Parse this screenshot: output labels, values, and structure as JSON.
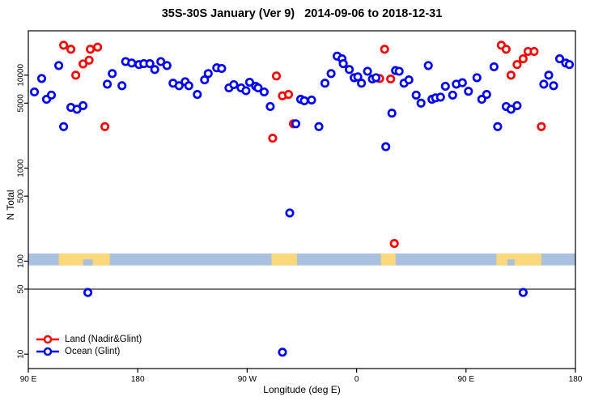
{
  "title": "35S-30S January (Ver 9)   2014-09-06 to 2018-12-31",
  "axes": {
    "xlabel": "Longitude (deg E)",
    "ylabel": "N Total"
  },
  "legend": [
    {
      "label": "Land (Nadir&Glint)",
      "color": "#ff0000",
      "symbol": "line-circle"
    },
    {
      "label": "Ocean (Glint)",
      "color": "#0000ff",
      "symbol": "line-circle"
    }
  ],
  "colors": {
    "land_series": "#ff0000",
    "ocean_series": "#0000ff",
    "map_ocean": "#a9c0de",
    "map_land": "#fcd87c",
    "axis": "#000000"
  },
  "chart_data": {
    "type": "scatter",
    "title": "35S-30S January (Ver 9)   2014-09-06 to 2018-12-31",
    "xlabel": "Longitude (deg E)",
    "ylabel": "N Total",
    "x_axis": {
      "domain": [
        90,
        540
      ],
      "note": "longitude wraps eastward from 90E through 180, 90W, 0, 90E to 180",
      "ticks": [
        {
          "v": 90,
          "label": "90 E"
        },
        {
          "v": 180,
          "label": "180"
        },
        {
          "v": 270,
          "label": "90 W"
        },
        {
          "v": 360,
          "label": "0"
        },
        {
          "v": 450,
          "label": "90 E"
        },
        {
          "v": 540,
          "label": "180"
        }
      ]
    },
    "y_axis": {
      "scale": "log",
      "domain": [
        7,
        30000
      ],
      "ticks": [
        {
          "v": 10,
          "label": "10"
        },
        {
          "v": 50,
          "label": "50"
        },
        {
          "v": 100,
          "label": "100"
        },
        {
          "v": 500,
          "label": "500"
        },
        {
          "v": 1000,
          "label": "1000"
        },
        {
          "v": 5000,
          "label": "5000"
        },
        {
          "v": 10000,
          "label": "10000"
        }
      ]
    },
    "hline": 50,
    "map_band": {
      "y_range": [
        90,
        121
      ],
      "ocean_color": "#a9c0de",
      "land_color": "#fcd87c",
      "land_patches": [
        [
          115,
          157
        ],
        [
          290,
          311
        ],
        [
          380,
          392
        ],
        [
          475,
          512
        ]
      ],
      "ocean_notches": [
        [
          135,
          143
        ],
        [
          484,
          490
        ]
      ]
    },
    "series": [
      {
        "name": "Land (Nadir&Glint)",
        "color": "#ff0000",
        "points": [
          [
            119,
            21000
          ],
          [
            125,
            19000
          ],
          [
            141,
            19000
          ],
          [
            147,
            20000
          ],
          [
            135,
            13200
          ],
          [
            140,
            14500
          ],
          [
            129,
            10000
          ],
          [
            153,
            2800
          ],
          [
            294,
            9800
          ],
          [
            299,
            6000
          ],
          [
            304,
            6200
          ],
          [
            308,
            3000
          ],
          [
            291,
            2100
          ],
          [
            383,
            19000
          ],
          [
            379,
            9200
          ],
          [
            388,
            9100
          ],
          [
            391,
            155
          ],
          [
            479,
            21000
          ],
          [
            483,
            19000
          ],
          [
            501,
            18000
          ],
          [
            506,
            18000
          ],
          [
            492,
            13000
          ],
          [
            497,
            15000
          ],
          [
            487,
            10000
          ],
          [
            512,
            2800
          ]
        ]
      },
      {
        "name": "Ocean (Glint)",
        "color": "#0000ff",
        "points": [
          [
            115,
            12700
          ],
          [
            101,
            9200
          ],
          [
            159,
            10400
          ],
          [
            155,
            8000
          ],
          [
            167,
            7700
          ],
          [
            95,
            6600
          ],
          [
            105,
            5500
          ],
          [
            109,
            6100
          ],
          [
            125,
            4500
          ],
          [
            130,
            4300
          ],
          [
            135,
            4700
          ],
          [
            119,
            2800
          ],
          [
            170,
            14000
          ],
          [
            175,
            13500
          ],
          [
            181,
            13000
          ],
          [
            185,
            13300
          ],
          [
            190,
            13300
          ],
          [
            194,
            11500
          ],
          [
            199,
            14000
          ],
          [
            204,
            12700
          ],
          [
            209,
            8200
          ],
          [
            214,
            7700
          ],
          [
            219,
            8500
          ],
          [
            222,
            7700
          ],
          [
            229,
            6200
          ],
          [
            235,
            8900
          ],
          [
            238,
            10400
          ],
          [
            245,
            12000
          ],
          [
            249,
            11800
          ],
          [
            255,
            7300
          ],
          [
            259,
            7900
          ],
          [
            265,
            7300
          ],
          [
            269,
            6800
          ],
          [
            272,
            8400
          ],
          [
            277,
            7600
          ],
          [
            279,
            7300
          ],
          [
            284,
            6600
          ],
          [
            289,
            4600
          ],
          [
            310,
            3000
          ],
          [
            314,
            5500
          ],
          [
            317,
            5300
          ],
          [
            323,
            5400
          ],
          [
            329,
            2800
          ],
          [
            334,
            8200
          ],
          [
            339,
            10400
          ],
          [
            344,
            16000
          ],
          [
            348,
            15000
          ],
          [
            349,
            13300
          ],
          [
            354,
            11500
          ],
          [
            358,
            9400
          ],
          [
            361,
            9600
          ],
          [
            364,
            8200
          ],
          [
            369,
            11000
          ],
          [
            373,
            9100
          ],
          [
            376,
            9400
          ],
          [
            392,
            11200
          ],
          [
            395,
            11000
          ],
          [
            399,
            8200
          ],
          [
            403,
            8900
          ],
          [
            389,
            3900
          ],
          [
            384,
            1700
          ],
          [
            419,
            12700
          ],
          [
            409,
            6100
          ],
          [
            413,
            5000
          ],
          [
            422,
            5500
          ],
          [
            425,
            5700
          ],
          [
            429,
            5800
          ],
          [
            433,
            7600
          ],
          [
            439,
            6100
          ],
          [
            442,
            8000
          ],
          [
            447,
            8300
          ],
          [
            452,
            6700
          ],
          [
            459,
            9400
          ],
          [
            463,
            5500
          ],
          [
            467,
            6200
          ],
          [
            473,
            12300
          ],
          [
            527,
            15000
          ],
          [
            532,
            13500
          ],
          [
            535,
            13000
          ],
          [
            518,
            10000
          ],
          [
            514,
            8000
          ],
          [
            522,
            7700
          ],
          [
            483,
            4600
          ],
          [
            487,
            4300
          ],
          [
            492,
            4700
          ],
          [
            476,
            2800
          ],
          [
            305,
            330
          ],
          [
            139,
            46
          ],
          [
            497,
            46
          ],
          [
            299,
            10.5
          ]
        ]
      }
    ]
  }
}
